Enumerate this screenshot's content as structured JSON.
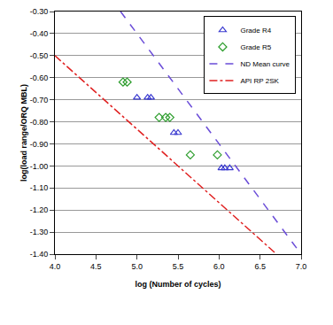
{
  "chart_data": {
    "type": "scatter",
    "x_label": "log (Number of cycles)",
    "y_label": "log(load range/ORQ MBL)",
    "xlim": [
      4.0,
      7.0
    ],
    "xticks": [
      {
        "value": 4.0,
        "label": "4.0"
      },
      {
        "value": 4.5,
        "label": "4.5"
      },
      {
        "value": 5.0,
        "label": "5.0"
      },
      {
        "value": 5.5,
        "label": "5.5"
      },
      {
        "value": 6.0,
        "label": "6.0"
      },
      {
        "value": 6.5,
        "label": "6.5"
      },
      {
        "value": 7.0,
        "label": "7.0"
      }
    ],
    "ylim": [
      -1.4,
      -0.3
    ],
    "yticks": [
      {
        "value": -0.3,
        "label": "-0.30"
      },
      {
        "value": -0.4,
        "label": "-0.40"
      },
      {
        "value": -0.5,
        "label": "-0.50"
      },
      {
        "value": -0.6,
        "label": "-0.60"
      },
      {
        "value": -0.7,
        "label": "-0.70"
      },
      {
        "value": -0.8,
        "label": "-0.80"
      },
      {
        "value": -0.9,
        "label": "-0.90"
      },
      {
        "value": -1.0,
        "label": "-1.00"
      },
      {
        "value": -1.1,
        "label": "-1.10"
      },
      {
        "value": -1.2,
        "label": "-1.20"
      },
      {
        "value": -1.3,
        "label": "-1.30"
      },
      {
        "value": -1.4,
        "label": "-1.40"
      }
    ],
    "grid": "y",
    "legend": "top right",
    "series": [
      {
        "name": "Grade R4",
        "type": "scatter",
        "marker": "triangle",
        "color": "#3a3ad0",
        "x": [
          5.0,
          5.13,
          5.17,
          5.45,
          5.5,
          6.03,
          6.07,
          6.13
        ],
        "values": [
          -0.69,
          -0.69,
          -0.69,
          -0.85,
          -0.85,
          -1.01,
          -1.01,
          -1.01
        ]
      },
      {
        "name": "Grade R5",
        "type": "scatter",
        "marker": "diamond",
        "color": "#2e9e2e",
        "x": [
          4.83,
          4.88,
          5.27,
          5.35,
          5.4,
          5.65,
          5.98
        ],
        "values": [
          -0.62,
          -0.62,
          -0.78,
          -0.78,
          -0.78,
          -0.95,
          -0.95
        ]
      },
      {
        "name": "ND Mean curve",
        "type": "line",
        "line_style": "dash",
        "color": "#6a4cd8",
        "x": [
          4.8,
          7.0
        ],
        "values": [
          -0.3,
          -1.4
        ]
      },
      {
        "name": "API RP 2SK",
        "type": "line",
        "line_style": "dashdot",
        "color": "#e02020",
        "x": [
          4.0,
          6.7
        ],
        "values": [
          -0.5,
          -1.4
        ]
      }
    ]
  }
}
